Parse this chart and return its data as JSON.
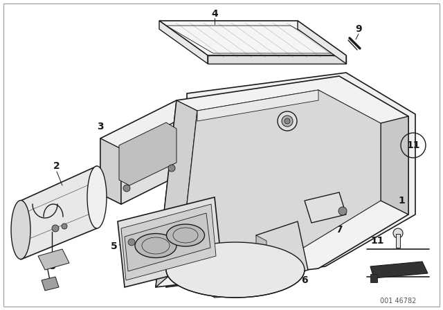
{
  "background_color": "#ffffff",
  "line_color": "#1a1a1a",
  "label_fontsize": 10,
  "line_width": 1.0,
  "fig_width": 6.4,
  "fig_height": 4.48,
  "watermark": "001 46782",
  "border_color": "#cccccc"
}
